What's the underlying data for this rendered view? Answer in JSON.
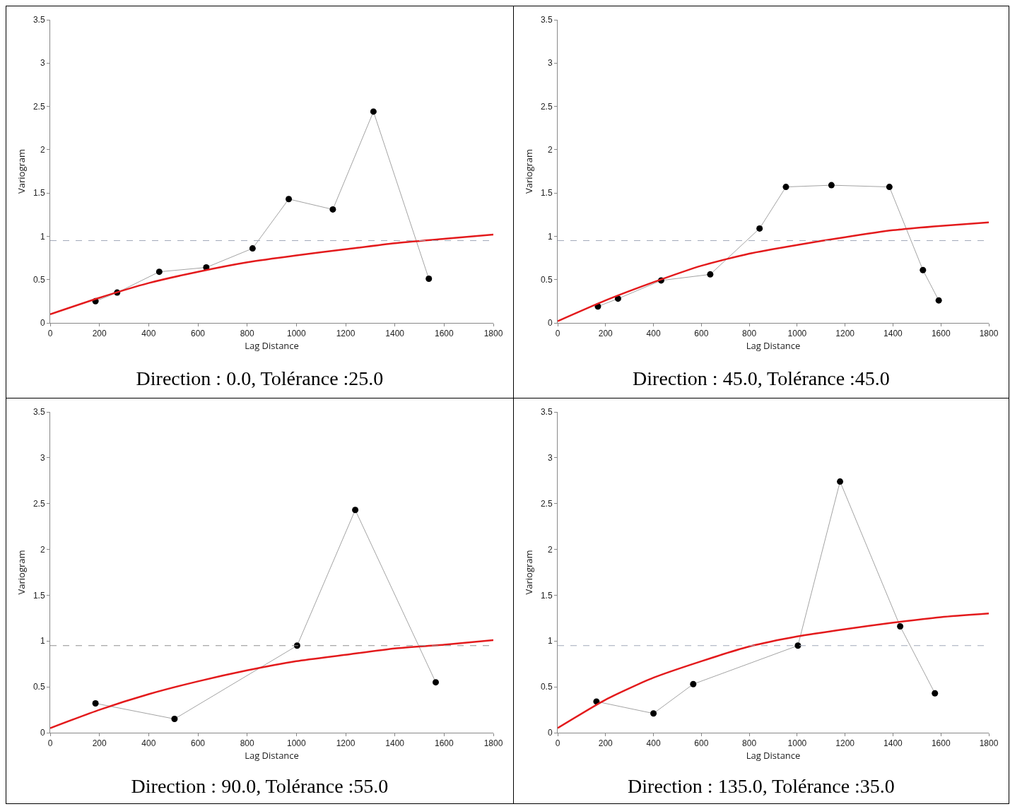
{
  "chart_data": [
    {
      "type": "line",
      "xlabel": "Lag Distance",
      "ylabel": "Variogram",
      "annotations": [
        "Direction : 0.0, Tolérance :25.0"
      ],
      "xlim": [
        0,
        1800
      ],
      "ylim": [
        0,
        3.5
      ],
      "xticks": [
        0,
        200,
        400,
        600,
        800,
        1000,
        1200,
        1400,
        1600,
        1800
      ],
      "yticks": [
        0,
        0.5,
        1,
        1.5,
        2,
        2.5,
        3,
        3.5
      ],
      "grid": false,
      "marker": "circle",
      "line_style": "solid",
      "ref_lines": [
        {
          "axis": "y",
          "value": 0.95,
          "color": "#a0a8b8",
          "line_style": "dashed"
        }
      ],
      "series": [
        {
          "color": "#000000",
          "x": [
            184,
            272,
            443,
            634,
            822,
            969,
            1148,
            1313,
            1538
          ],
          "values": [
            0.25,
            0.35,
            0.59,
            0.64,
            0.86,
            1.43,
            1.31,
            2.44,
            0.51
          ]
        },
        {
          "type": "line",
          "marker": "none",
          "color": "#e31a1c",
          "x": [
            0,
            200,
            400,
            600,
            800,
            1000,
            1200,
            1400,
            1600,
            1800
          ],
          "values": [
            0.1,
            0.29,
            0.46,
            0.59,
            0.7,
            0.78,
            0.85,
            0.92,
            0.97,
            1.02
          ]
        }
      ]
    },
    {
      "type": "line",
      "xlabel": "Lag Distance",
      "ylabel": "Variogram",
      "annotations": [
        "Direction : 45.0, Tolérance :45.0"
      ],
      "xlim": [
        0,
        1800
      ],
      "ylim": [
        0,
        3.5
      ],
      "xticks": [
        0,
        200,
        400,
        600,
        800,
        1000,
        1200,
        1400,
        1600,
        1800
      ],
      "yticks": [
        0,
        0.5,
        1,
        1.5,
        2,
        2.5,
        3,
        3.5
      ],
      "grid": false,
      "marker": "circle",
      "line_style": "solid",
      "ref_lines": [
        {
          "axis": "y",
          "value": 0.95,
          "color": "#a0a8b8",
          "line_style": "dashed"
        }
      ],
      "series": [
        {
          "color": "#000000",
          "x": [
            168,
            252,
            432,
            637,
            843,
            953,
            1143,
            1385,
            1525,
            1591
          ],
          "values": [
            0.19,
            0.28,
            0.49,
            0.56,
            1.09,
            1.57,
            1.59,
            1.57,
            0.61,
            0.26
          ]
        },
        {
          "type": "line",
          "marker": "none",
          "color": "#e31a1c",
          "x": [
            0,
            200,
            400,
            600,
            800,
            1000,
            1200,
            1400,
            1600,
            1800
          ],
          "values": [
            0.02,
            0.26,
            0.47,
            0.66,
            0.8,
            0.9,
            0.99,
            1.07,
            1.12,
            1.16
          ]
        }
      ]
    },
    {
      "type": "line",
      "xlabel": "Lag Distance",
      "ylabel": "Variogram",
      "annotations": [
        "Direction : 90.0, Tolérance :55.0"
      ],
      "xlim": [
        0,
        1800
      ],
      "ylim": [
        0,
        3.5
      ],
      "xticks": [
        0,
        200,
        400,
        600,
        800,
        1000,
        1200,
        1400,
        1600,
        1800
      ],
      "yticks": [
        0,
        0.5,
        1,
        1.5,
        2,
        2.5,
        3,
        3.5
      ],
      "grid": false,
      "marker": "circle",
      "line_style": "solid",
      "ref_lines": [
        {
          "axis": "y",
          "value": 0.95,
          "color": "#909090",
          "line_style": "dashed"
        }
      ],
      "series": [
        {
          "color": "#000000",
          "x": [
            184,
            505,
            1003,
            1239,
            1566
          ],
          "values": [
            0.32,
            0.15,
            0.95,
            2.43,
            0.55
          ]
        },
        {
          "type": "line",
          "marker": "none",
          "color": "#e31a1c",
          "x": [
            0,
            200,
            400,
            600,
            800,
            1000,
            1200,
            1400,
            1600,
            1800
          ],
          "values": [
            0.05,
            0.25,
            0.42,
            0.56,
            0.68,
            0.78,
            0.85,
            0.92,
            0.96,
            1.01
          ]
        }
      ]
    },
    {
      "type": "line",
      "xlabel": "Lag Distance",
      "ylabel": "Variogram",
      "annotations": [
        "Direction : 135.0, Tolérance :35.0"
      ],
      "xlim": [
        0,
        1800
      ],
      "ylim": [
        0,
        3.5
      ],
      "xticks": [
        0,
        200,
        400,
        600,
        800,
        1000,
        1200,
        1400,
        1600,
        1800
      ],
      "yticks": [
        0,
        0.5,
        1,
        1.5,
        2,
        2.5,
        3,
        3.5
      ],
      "grid": false,
      "marker": "circle",
      "line_style": "solid",
      "ref_lines": [
        {
          "axis": "y",
          "value": 0.95,
          "color": "#a0a8b8",
          "line_style": "dashed"
        }
      ],
      "series": [
        {
          "color": "#000000",
          "x": [
            162,
            400,
            566,
            1003,
            1179,
            1430,
            1575
          ],
          "values": [
            0.34,
            0.21,
            0.53,
            0.95,
            2.74,
            1.16,
            0.43
          ]
        },
        {
          "type": "line",
          "marker": "none",
          "color": "#e31a1c",
          "x": [
            0,
            200,
            400,
            600,
            800,
            1000,
            1200,
            1400,
            1600,
            1800
          ],
          "values": [
            0.05,
            0.36,
            0.6,
            0.78,
            0.94,
            1.05,
            1.13,
            1.2,
            1.26,
            1.3
          ]
        }
      ]
    }
  ]
}
